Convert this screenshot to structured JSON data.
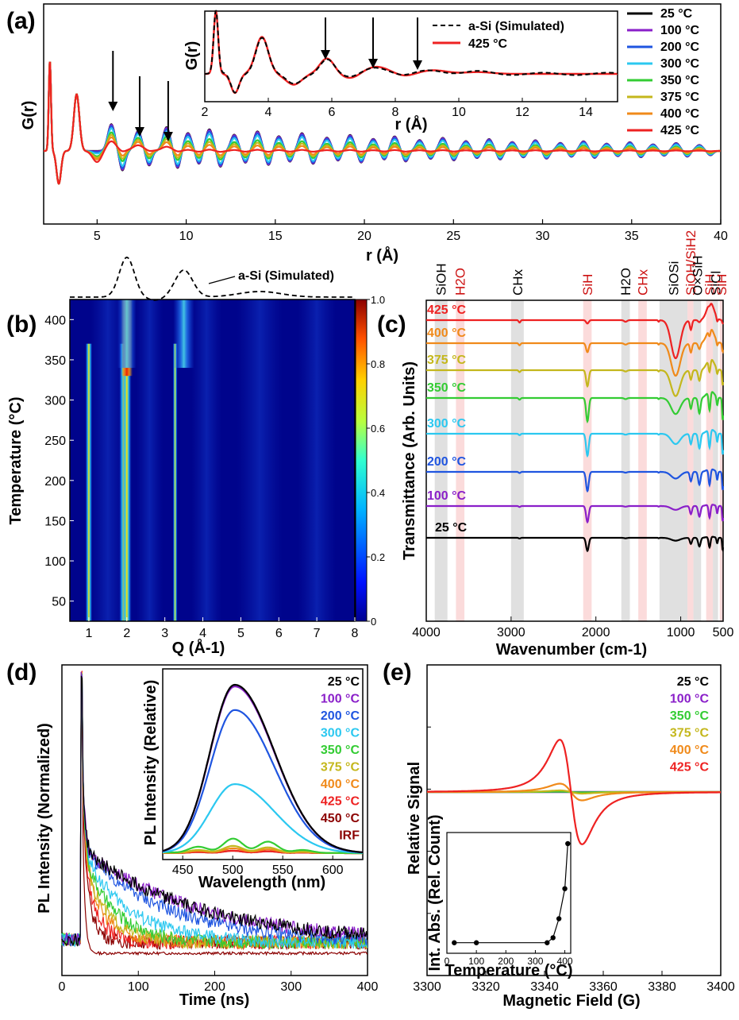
{
  "panel_labels": [
    "(a)",
    "(b)",
    "(c)",
    "(d)",
    "(e)"
  ],
  "colors": {
    "25": "#000000",
    "100": "#8a1fc9",
    "200": "#1f55e0",
    "300": "#2bc8f0",
    "350": "#33cc33",
    "375": "#c4b71c",
    "400": "#f08a1a",
    "425": "#ee2222",
    "450": "#8b0000",
    "IRF": "#8b0000"
  },
  "chart_data": [
    {
      "panel": "a",
      "type": "line",
      "xlabel": "r (Å)",
      "ylabel": "G(r)",
      "xlim": [
        2,
        40
      ],
      "xticks": [
        5,
        10,
        15,
        20,
        25,
        30,
        35,
        40
      ],
      "series": [
        {
          "name": "25 °C"
        },
        {
          "name": "100 °C"
        },
        {
          "name": "200 °C"
        },
        {
          "name": "300 °C"
        },
        {
          "name": "350 °C"
        },
        {
          "name": "375 °C"
        },
        {
          "name": "400 °C"
        },
        {
          "name": "425 °C"
        }
      ],
      "peaks_r": [
        2.35,
        3.85,
        5.8,
        7.3,
        8.9,
        10.1,
        11.3,
        12.7,
        14.0,
        15.2,
        16.5,
        17.9,
        19.2,
        20.5,
        21.7,
        23.1,
        24.4,
        25.7,
        27.0,
        28.3,
        29.6,
        31.0,
        32.3,
        33.6,
        34.9,
        36.2,
        37.5,
        38.8
      ],
      "arrows_r": [
        5.8,
        7.3,
        8.9
      ],
      "inset": {
        "xlabel": "r (Å)",
        "ylabel": "G(r)",
        "xlim": [
          2,
          15
        ],
        "xticks": [
          2,
          4,
          6,
          8,
          10,
          12,
          14
        ],
        "series": [
          {
            "name": "a-Si (Simulated)"
          },
          {
            "name": "425 °C"
          }
        ],
        "arrows_r": [
          5.8,
          7.3,
          8.7
        ]
      }
    },
    {
      "panel": "b",
      "type": "heatmap",
      "xlabel": "Q (Å-1)",
      "ylabel": "Temperature (°C)",
      "xlim": [
        0.5,
        8
      ],
      "ylim": [
        25,
        425
      ],
      "xticks": [
        1,
        2,
        3,
        4,
        5,
        6,
        7,
        8
      ],
      "yticks": [
        50,
        100,
        150,
        200,
        250,
        300,
        350,
        400
      ],
      "colorbar_ticks": [
        0,
        0.2,
        0.4,
        0.6,
        0.8,
        1.0
      ],
      "colorbar_labels": [
        "0",
        "0.2",
        "0.4",
        "0.6",
        "0.8",
        "1.0"
      ],
      "overlay_label": "a-Si (Simulated)",
      "crystalline_peaks_Q": [
        1.0,
        1.92,
        3.27
      ],
      "crystalline_vanish_T": 370,
      "amorphous_peaks_Q": [
        2.0,
        3.5,
        5.5
      ]
    },
    {
      "panel": "c",
      "type": "line",
      "xlabel": "Wavenumber (cm-1)",
      "ylabel": "Transmittance (Arb. Units)",
      "xlim": [
        4000,
        500
      ],
      "xticks": [
        4000,
        3000,
        2000,
        1000,
        500
      ],
      "series": [
        {
          "name": "425 °C"
        },
        {
          "name": "400 °C"
        },
        {
          "name": "375 °C"
        },
        {
          "name": "350 °C"
        },
        {
          "name": "300 °C"
        },
        {
          "name": "200 °C"
        },
        {
          "name": "100 °C"
        },
        {
          "name": "25 °C"
        }
      ],
      "bands": [
        {
          "label": "SiOH",
          "range": [
            3900,
            3750
          ],
          "color": "gray"
        },
        {
          "label": "H2O",
          "range": [
            3650,
            3550
          ],
          "color": "red"
        },
        {
          "label": "CHx",
          "range": [
            3000,
            2850
          ],
          "color": "gray"
        },
        {
          "label": "SiH",
          "range": [
            2150,
            2050
          ],
          "color": "red"
        },
        {
          "label": "H2O",
          "range": [
            1700,
            1600
          ],
          "color": "gray"
        },
        {
          "label": "CHx",
          "range": [
            1500,
            1400
          ],
          "color": "red"
        },
        {
          "label": "SiOSi",
          "range": [
            1250,
            920
          ],
          "color": "gray"
        },
        {
          "label": "SiOH/SiH2",
          "range": [
            920,
            850
          ],
          "color": "red"
        },
        {
          "label": "O×SiH",
          "range": [
            850,
            760
          ],
          "color": "gray"
        },
        {
          "label": "SiH",
          "range": [
            700,
            620
          ],
          "color": "red"
        },
        {
          "label": "SiCl",
          "range": [
            620,
            560
          ],
          "color": "gray"
        },
        {
          "label": "SiH",
          "range": [
            540,
            500
          ],
          "color": "red"
        }
      ]
    },
    {
      "panel": "d",
      "type": "line",
      "xlabel": "Time (ns)",
      "ylabel": "PL Intensity (Normalized)",
      "xlim": [
        0,
        400
      ],
      "xticks": [
        0,
        100,
        200,
        300,
        400
      ],
      "series": [
        {
          "name": "25 °C"
        },
        {
          "name": "100 °C"
        },
        {
          "name": "200 °C"
        },
        {
          "name": "300 °C"
        },
        {
          "name": "350 °C"
        },
        {
          "name": "375 °C"
        },
        {
          "name": "400 °C"
        },
        {
          "name": "425 °C"
        },
        {
          "name": "450 °C"
        },
        {
          "name": "IRF"
        }
      ],
      "inset": {
        "xlabel": "Wavelength (nm)",
        "ylabel": "PL Intensity (Relative)",
        "xlim": [
          430,
          630
        ],
        "xticks": [
          450,
          500,
          550,
          600
        ],
        "peak_nm": 502,
        "series": [
          {
            "name": "25 °C",
            "amplitude": 1.0
          },
          {
            "name": "100 °C",
            "amplitude": 0.99
          },
          {
            "name": "200 °C",
            "amplitude": 0.85
          },
          {
            "name": "300 °C",
            "amplitude": 0.41
          },
          {
            "name": "350 °C",
            "amplitude": 0.06
          },
          {
            "name": "375 °C",
            "amplitude": 0.03
          },
          {
            "name": "400 °C",
            "amplitude": 0.02
          },
          {
            "name": "425 °C",
            "amplitude": 0.01
          },
          {
            "name": "450 °C",
            "amplitude": 0.01
          }
        ]
      }
    },
    {
      "panel": "e",
      "type": "line",
      "xlabel": "Magnetic Field (G)",
      "ylabel": "Relative Signal",
      "xlim": [
        3300,
        3400
      ],
      "xticks": [
        3300,
        3320,
        3340,
        3360,
        3380,
        3400
      ],
      "center_G": 3349,
      "series": [
        {
          "name": "25 °C",
          "amplitude": 0.0
        },
        {
          "name": "100 °C",
          "amplitude": 0.0
        },
        {
          "name": "350 °C",
          "amplitude": 0.005
        },
        {
          "name": "375 °C",
          "amplitude": 0.03
        },
        {
          "name": "400 °C",
          "amplitude": 0.16
        },
        {
          "name": "425 °C",
          "amplitude": 1.0
        }
      ],
      "inset": {
        "type": "scatter",
        "xlabel": "Temperature (°C)",
        "ylabel": "Int. Abs. (Rel. Count)",
        "xlim": [
          0,
          420
        ],
        "xticks": [
          0,
          100,
          200,
          300,
          400
        ],
        "x": [
          25,
          100,
          340,
          360,
          380,
          400,
          410
        ],
        "y": [
          0.01,
          0.01,
          0.01,
          0.06,
          0.25,
          0.55,
          1.0
        ]
      }
    }
  ]
}
